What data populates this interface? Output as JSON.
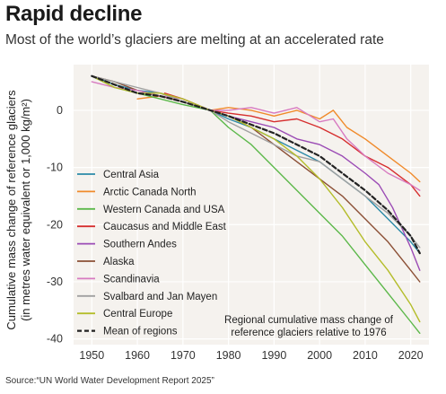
{
  "header": {
    "title": "Rapid decline",
    "subtitle": "Most of the world’s glaciers are melting at an accelerated rate"
  },
  "footer": {
    "source": "Source:“UN World Water Development Report 2025”"
  },
  "colors": {
    "plot_background": "#f5f2ee",
    "grid": "#ffffff"
  },
  "chart_data": {
    "type": "line",
    "ylabel_line1": "Cumulative mass change of reference glaciers",
    "ylabel_line2": "(in metres water equivalent or 1,000 kg/m²)",
    "xlim": [
      1946,
      2024
    ],
    "ylim": [
      -41,
      8
    ],
    "x_ticks": [
      1950,
      1960,
      1970,
      1980,
      1990,
      2000,
      2010,
      2020
    ],
    "x_tick_labels": [
      "1950",
      "1960",
      "1970",
      "1980",
      "1990",
      "2000",
      "2010",
      "2020"
    ],
    "y_ticks": [
      0,
      -10,
      -20,
      -30,
      -40
    ],
    "y_tick_labels": [
      "0",
      "-10",
      "-20",
      "-30",
      "-40"
    ],
    "grid": true,
    "legend_position": "left",
    "annotation_line1": "Regional cumulative mass change of",
    "annotation_line2": "reference glaciers relative to 1976",
    "series": [
      {
        "name": "Central Asia",
        "color": "#2b8aa8",
        "dashed": false,
        "points": [
          [
            1950,
            6
          ],
          [
            1955,
            4.5
          ],
          [
            1960,
            3.5
          ],
          [
            1965,
            3
          ],
          [
            1970,
            2
          ],
          [
            1976,
            0
          ],
          [
            1980,
            -1.5
          ],
          [
            1985,
            -3
          ],
          [
            1990,
            -5
          ],
          [
            1995,
            -7
          ],
          [
            2000,
            -9
          ],
          [
            2005,
            -12
          ],
          [
            2010,
            -15
          ],
          [
            2015,
            -19
          ],
          [
            2020,
            -23
          ],
          [
            2022,
            -25
          ]
        ]
      },
      {
        "name": "Arctic Canada North",
        "color": "#f08a2a",
        "dashed": false,
        "points": [
          [
            1960,
            2
          ],
          [
            1965,
            2.5
          ],
          [
            1970,
            1.5
          ],
          [
            1976,
            0
          ],
          [
            1980,
            0.5
          ],
          [
            1985,
            0
          ],
          [
            1990,
            -1
          ],
          [
            1995,
            0
          ],
          [
            2000,
            -1.5
          ],
          [
            2003,
            0
          ],
          [
            2006,
            -3
          ],
          [
            2010,
            -5
          ],
          [
            2015,
            -8
          ],
          [
            2020,
            -11
          ],
          [
            2022,
            -12.5
          ]
        ]
      },
      {
        "name": "Western Canada and USA",
        "color": "#5cb84a",
        "dashed": false,
        "points": [
          [
            1950,
            6
          ],
          [
            1955,
            4
          ],
          [
            1960,
            3
          ],
          [
            1965,
            2
          ],
          [
            1970,
            1
          ],
          [
            1976,
            0
          ],
          [
            1980,
            -3
          ],
          [
            1985,
            -6
          ],
          [
            1990,
            -10
          ],
          [
            1995,
            -14
          ],
          [
            2000,
            -18
          ],
          [
            2005,
            -22
          ],
          [
            2010,
            -27
          ],
          [
            2015,
            -32
          ],
          [
            2020,
            -37
          ],
          [
            2022,
            -39
          ]
        ]
      },
      {
        "name": "Caucasus and Middle East",
        "color": "#d62f2f",
        "dashed": false,
        "points": [
          [
            1966,
            3
          ],
          [
            1970,
            2
          ],
          [
            1976,
            0
          ],
          [
            1980,
            -0.5
          ],
          [
            1985,
            -1
          ],
          [
            1990,
            -2
          ],
          [
            1995,
            -1.5
          ],
          [
            2000,
            -3
          ],
          [
            2005,
            -5
          ],
          [
            2010,
            -8
          ],
          [
            2015,
            -10
          ],
          [
            2020,
            -13
          ],
          [
            2022,
            -15
          ]
        ]
      },
      {
        "name": "Southern Andes",
        "color": "#9b4bb5",
        "dashed": false,
        "points": [
          [
            1976,
            0
          ],
          [
            1980,
            -1
          ],
          [
            1985,
            -2
          ],
          [
            1990,
            -3
          ],
          [
            1995,
            -5
          ],
          [
            2000,
            -6
          ],
          [
            2005,
            -8
          ],
          [
            2010,
            -11
          ],
          [
            2013,
            -13
          ],
          [
            2016,
            -17
          ],
          [
            2020,
            -24
          ],
          [
            2022,
            -28
          ]
        ]
      },
      {
        "name": "Alaska",
        "color": "#8b4f35",
        "dashed": false,
        "points": [
          [
            1950,
            6
          ],
          [
            1955,
            5
          ],
          [
            1960,
            3.5
          ],
          [
            1965,
            2.5
          ],
          [
            1970,
            1.5
          ],
          [
            1976,
            0
          ],
          [
            1980,
            -1
          ],
          [
            1985,
            -3
          ],
          [
            1990,
            -6
          ],
          [
            1995,
            -9
          ],
          [
            2000,
            -12
          ],
          [
            2005,
            -15
          ],
          [
            2010,
            -19
          ],
          [
            2015,
            -23
          ],
          [
            2020,
            -28
          ],
          [
            2022,
            -30
          ]
        ]
      },
      {
        "name": "Scandinavia",
        "color": "#d77ac0",
        "dashed": false,
        "points": [
          [
            1950,
            5
          ],
          [
            1955,
            4
          ],
          [
            1960,
            3.5
          ],
          [
            1965,
            2.5
          ],
          [
            1970,
            2
          ],
          [
            1976,
            0
          ],
          [
            1980,
            0
          ],
          [
            1985,
            0.5
          ],
          [
            1990,
            -0.5
          ],
          [
            1995,
            0.5
          ],
          [
            2000,
            -2
          ],
          [
            2003,
            -1.5
          ],
          [
            2006,
            -5
          ],
          [
            2010,
            -8
          ],
          [
            2015,
            -11
          ],
          [
            2020,
            -13
          ],
          [
            2022,
            -14
          ]
        ]
      },
      {
        "name": "Svalbard and Jan Mayen",
        "color": "#a0a0a0",
        "dashed": false,
        "points": [
          [
            1950,
            6
          ],
          [
            1955,
            5
          ],
          [
            1960,
            4
          ],
          [
            1965,
            3
          ],
          [
            1970,
            1.5
          ],
          [
            1976,
            0
          ],
          [
            1980,
            -2
          ],
          [
            1985,
            -4
          ],
          [
            1990,
            -6
          ],
          [
            1995,
            -8
          ],
          [
            2000,
            -9
          ],
          [
            2005,
            -12
          ],
          [
            2010,
            -15
          ],
          [
            2015,
            -18
          ],
          [
            2020,
            -22
          ],
          [
            2022,
            -24
          ]
        ]
      },
      {
        "name": "Central Europe",
        "color": "#b4bd2a",
        "dashed": false,
        "points": [
          [
            1950,
            6
          ],
          [
            1955,
            4
          ],
          [
            1960,
            3
          ],
          [
            1965,
            3
          ],
          [
            1970,
            2
          ],
          [
            1976,
            0
          ],
          [
            1980,
            -1
          ],
          [
            1985,
            -3
          ],
          [
            1990,
            -5
          ],
          [
            1995,
            -8
          ],
          [
            2000,
            -12
          ],
          [
            2005,
            -17
          ],
          [
            2010,
            -23
          ],
          [
            2015,
            -28
          ],
          [
            2020,
            -34
          ],
          [
            2022,
            -37
          ]
        ]
      },
      {
        "name": "Mean of regions",
        "color": "#222222",
        "dashed": true,
        "points": [
          [
            1950,
            6
          ],
          [
            1955,
            4.5
          ],
          [
            1960,
            3
          ],
          [
            1965,
            2.5
          ],
          [
            1970,
            1.5
          ],
          [
            1976,
            0
          ],
          [
            1980,
            -1
          ],
          [
            1985,
            -2.5
          ],
          [
            1990,
            -4
          ],
          [
            1995,
            -6
          ],
          [
            2000,
            -8
          ],
          [
            2005,
            -11
          ],
          [
            2010,
            -14
          ],
          [
            2015,
            -17.5
          ],
          [
            2020,
            -22
          ],
          [
            2022,
            -25
          ]
        ]
      }
    ]
  }
}
